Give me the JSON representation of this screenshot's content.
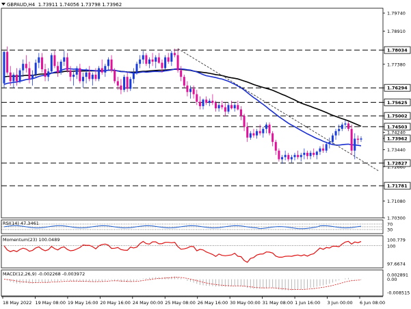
{
  "header": {
    "symbol": "GBPAUD,H4",
    "ohlc": "1.73911 1.74056 1.73798 1.73962"
  },
  "chart_data": [
    {
      "type": "candlestick",
      "title": "GBPAUD,H4",
      "ylim": [
        1.703,
        1.799
      ],
      "y_ticks": [
        "1.79740",
        "1.78910",
        "1.78034",
        "1.77380",
        "1.76294",
        "1.75625",
        "1.75002",
        "1.74503",
        "1.74240",
        "1.73962",
        "1.73440",
        "1.72827",
        "1.72660",
        "1.71781",
        "1.71080",
        "1.70300"
      ],
      "x_ticks": [
        "18 May 2022",
        "19 May 08:00",
        "19 May 16:00",
        "20 May 16:00",
        "24 May 00:00",
        "25 May 08:00",
        "26 May 16:00",
        "30 May 00:00",
        "31 May 08:00",
        "1 Jun 16:00",
        "3 Jun 00:00",
        "6 Jun 08:00"
      ],
      "horizontal_levels": [
        {
          "value": 1.78034,
          "label": "1.78034"
        },
        {
          "value": 1.76294,
          "label": "1.76294"
        },
        {
          "value": 1.75625,
          "label": "1.75625"
        },
        {
          "value": 1.75002,
          "label": "1.75002"
        },
        {
          "value": 1.74503,
          "label": "1.74503"
        },
        {
          "value": 1.72827,
          "label": "1.72827"
        },
        {
          "value": 1.71781,
          "label": "1.71781"
        }
      ],
      "current_price": {
        "value": 1.73962,
        "label": "1.73962"
      },
      "trendline": {
        "from": {
          "bar": 55,
          "price": 1.781
        },
        "to": {
          "bar": 117,
          "price": 1.7245
        }
      },
      "colors": {
        "bull": "#1a3cdc",
        "bear": "#e0109a",
        "ma_fast": "#1a2fd0",
        "ma_slow": "#000000"
      },
      "bars": [
        [
          1.765,
          1.78,
          1.763,
          1.7795
        ],
        [
          1.7795,
          1.782,
          1.769,
          1.77
        ],
        [
          1.77,
          1.773,
          1.764,
          1.766
        ],
        [
          1.766,
          1.77,
          1.763,
          1.769
        ],
        [
          1.769,
          1.772,
          1.764,
          1.766
        ],
        [
          1.766,
          1.772,
          1.765,
          1.771
        ],
        [
          1.771,
          1.776,
          1.768,
          1.774
        ],
        [
          1.774,
          1.778,
          1.77,
          1.772
        ],
        [
          1.772,
          1.775,
          1.765,
          1.767
        ],
        [
          1.767,
          1.771,
          1.764,
          1.769
        ],
        [
          1.769,
          1.776,
          1.768,
          1.7745
        ],
        [
          1.7745,
          1.779,
          1.772,
          1.777
        ],
        [
          1.777,
          1.779,
          1.77,
          1.7715
        ],
        [
          1.7715,
          1.774,
          1.766,
          1.768
        ],
        [
          1.768,
          1.772,
          1.766,
          1.7705
        ],
        [
          1.7705,
          1.779,
          1.7695,
          1.778
        ],
        [
          1.778,
          1.78,
          1.772,
          1.773
        ],
        [
          1.773,
          1.775,
          1.768,
          1.77
        ],
        [
          1.77,
          1.776,
          1.769,
          1.775
        ],
        [
          1.775,
          1.78,
          1.773,
          1.777
        ],
        [
          1.777,
          1.779,
          1.77,
          1.771
        ],
        [
          1.771,
          1.773,
          1.766,
          1.768
        ],
        [
          1.768,
          1.771,
          1.764,
          1.769
        ],
        [
          1.769,
          1.773,
          1.767,
          1.772
        ],
        [
          1.772,
          1.774,
          1.765,
          1.766
        ],
        [
          1.766,
          1.77,
          1.763,
          1.768
        ],
        [
          1.768,
          1.772,
          1.765,
          1.77
        ],
        [
          1.77,
          1.773,
          1.766,
          1.767
        ],
        [
          1.767,
          1.77,
          1.764,
          1.769
        ],
        [
          1.769,
          1.772,
          1.766,
          1.767
        ],
        [
          1.767,
          1.773,
          1.766,
          1.772
        ],
        [
          1.772,
          1.776,
          1.769,
          1.77
        ],
        [
          1.77,
          1.774,
          1.768,
          1.773
        ],
        [
          1.773,
          1.777,
          1.771,
          1.776
        ],
        [
          1.776,
          1.778,
          1.77,
          1.771
        ],
        [
          1.771,
          1.772,
          1.765,
          1.766
        ],
        [
          1.766,
          1.768,
          1.762,
          1.764
        ],
        [
          1.764,
          1.767,
          1.76,
          1.762
        ],
        [
          1.762,
          1.769,
          1.761,
          1.768
        ],
        [
          1.768,
          1.77,
          1.761,
          1.7625
        ],
        [
          1.7625,
          1.768,
          1.7615,
          1.767
        ],
        [
          1.767,
          1.772,
          1.765,
          1.77
        ],
        [
          1.77,
          1.775,
          1.769,
          1.774
        ],
        [
          1.774,
          1.778,
          1.772,
          1.776
        ],
        [
          1.776,
          1.78,
          1.774,
          1.778
        ],
        [
          1.778,
          1.779,
          1.773,
          1.774
        ],
        [
          1.774,
          1.777,
          1.772,
          1.776
        ],
        [
          1.776,
          1.779,
          1.773,
          1.775
        ],
        [
          1.775,
          1.778,
          1.772,
          1.777
        ],
        [
          1.777,
          1.779,
          1.774,
          1.7745
        ],
        [
          1.7745,
          1.776,
          1.77,
          1.772
        ],
        [
          1.772,
          1.778,
          1.771,
          1.777
        ],
        [
          1.777,
          1.779,
          1.774,
          1.775
        ],
        [
          1.775,
          1.78,
          1.773,
          1.779
        ],
        [
          1.779,
          1.781,
          1.777,
          1.778
        ],
        [
          1.778,
          1.781,
          1.77,
          1.771
        ],
        [
          1.771,
          1.773,
          1.766,
          1.768
        ],
        [
          1.768,
          1.769,
          1.763,
          1.764
        ],
        [
          1.764,
          1.766,
          1.759,
          1.761
        ],
        [
          1.761,
          1.764,
          1.758,
          1.7625
        ],
        [
          1.7625,
          1.764,
          1.758,
          1.76
        ],
        [
          1.76,
          1.762,
          1.755,
          1.7565
        ],
        [
          1.7565,
          1.759,
          1.753,
          1.7545
        ],
        [
          1.7545,
          1.758,
          1.753,
          1.7575
        ],
        [
          1.7575,
          1.759,
          1.755,
          1.756
        ],
        [
          1.756,
          1.758,
          1.7545,
          1.757
        ],
        [
          1.757,
          1.76,
          1.755,
          1.756
        ],
        [
          1.756,
          1.757,
          1.752,
          1.7535
        ],
        [
          1.7535,
          1.756,
          1.752,
          1.755
        ],
        [
          1.755,
          1.757,
          1.753,
          1.754
        ],
        [
          1.754,
          1.756,
          1.75,
          1.752
        ],
        [
          1.752,
          1.756,
          1.751,
          1.755
        ],
        [
          1.755,
          1.757,
          1.753,
          1.7535
        ],
        [
          1.7535,
          1.756,
          1.752,
          1.755
        ],
        [
          1.755,
          1.757,
          1.7525,
          1.753
        ],
        [
          1.753,
          1.7545,
          1.748,
          1.75
        ],
        [
          1.75,
          1.751,
          1.743,
          1.745
        ],
        [
          1.745,
          1.747,
          1.738,
          1.74
        ],
        [
          1.74,
          1.743,
          1.739,
          1.742
        ],
        [
          1.742,
          1.744,
          1.74,
          1.741
        ],
        [
          1.741,
          1.744,
          1.7395,
          1.743
        ],
        [
          1.743,
          1.746,
          1.741,
          1.742
        ],
        [
          1.742,
          1.745,
          1.74,
          1.744
        ],
        [
          1.744,
          1.747,
          1.742,
          1.746
        ],
        [
          1.746,
          1.747,
          1.741,
          1.742
        ],
        [
          1.742,
          1.743,
          1.736,
          1.738
        ],
        [
          1.738,
          1.739,
          1.732,
          1.734
        ],
        [
          1.734,
          1.735,
          1.729,
          1.73
        ],
        [
          1.73,
          1.732,
          1.728,
          1.731
        ],
        [
          1.731,
          1.734,
          1.7295,
          1.732
        ],
        [
          1.732,
          1.733,
          1.729,
          1.73
        ],
        [
          1.73,
          1.732,
          1.7285,
          1.731
        ],
        [
          1.731,
          1.733,
          1.7295,
          1.732
        ],
        [
          1.732,
          1.734,
          1.73,
          1.731
        ],
        [
          1.731,
          1.733,
          1.729,
          1.732
        ],
        [
          1.732,
          1.735,
          1.73,
          1.733
        ],
        [
          1.733,
          1.734,
          1.73,
          1.7315
        ],
        [
          1.7315,
          1.734,
          1.73,
          1.733
        ],
        [
          1.733,
          1.735,
          1.731,
          1.732
        ],
        [
          1.732,
          1.734,
          1.73,
          1.7335
        ],
        [
          1.7335,
          1.736,
          1.732,
          1.735
        ],
        [
          1.735,
          1.737,
          1.733,
          1.734
        ],
        [
          1.734,
          1.738,
          1.733,
          1.737
        ],
        [
          1.737,
          1.74,
          1.735,
          1.738
        ],
        [
          1.738,
          1.742,
          1.737,
          1.741
        ],
        [
          1.741,
          1.744,
          1.739,
          1.743
        ],
        [
          1.743,
          1.746,
          1.741,
          1.744
        ],
        [
          1.744,
          1.747,
          1.743,
          1.746
        ],
        [
          1.746,
          1.748,
          1.744,
          1.7465
        ],
        [
          1.7465,
          1.7475,
          1.743,
          1.744
        ],
        [
          1.744,
          1.746,
          1.732,
          1.734
        ],
        [
          1.734,
          1.742,
          1.73,
          1.7395
        ],
        [
          1.7395,
          1.741,
          1.737,
          1.739
        ],
        [
          1.7391,
          1.7406,
          1.738,
          1.7396
        ]
      ]
    },
    {
      "type": "line",
      "title": "RSI(14) 47.3461",
      "indicator": "RSI(14)",
      "value_label": "47.3461",
      "levels": [
        "70",
        "30"
      ]
    },
    {
      "type": "line",
      "title": "Momentum(23) 100.0489",
      "indicator": "Momentum(23)",
      "value_label": "100.0489",
      "y_ticks": [
        "100.779",
        "100",
        "97.6674"
      ]
    },
    {
      "type": "bar",
      "title": "MACD(12,26,9) -0.002268 -0.003972",
      "indicator": "MACD(12,26,9)",
      "value_label": "-0.002268 -0.003972",
      "y_ticks": [
        "0.002891",
        "0.00",
        "-0.008515"
      ]
    }
  ]
}
